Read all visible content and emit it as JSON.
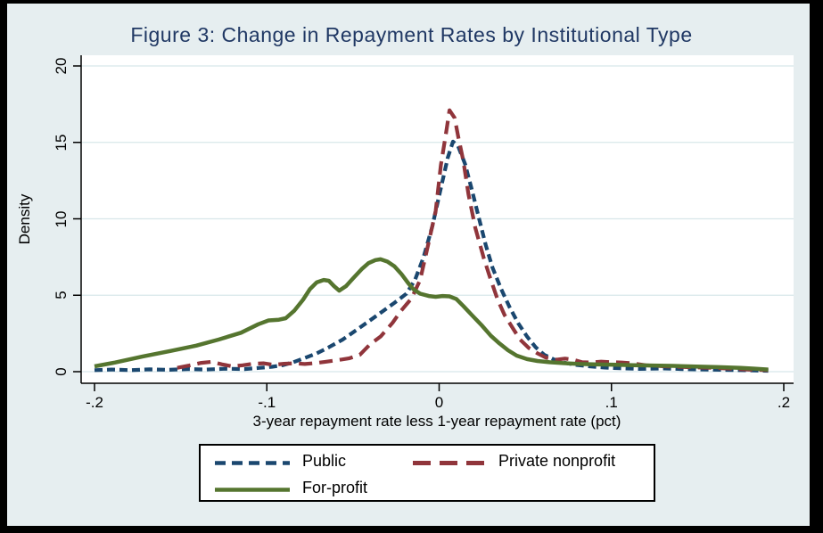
{
  "title": "Figure 3: Change in Repayment Rates by Institutional Type",
  "y_axis": {
    "label": "Density",
    "ticks": [
      0,
      5,
      10,
      15,
      20
    ]
  },
  "x_axis": {
    "label": "3-year repayment rate less 1-year repayment rate (pct)",
    "ticks": [
      "-.2",
      "-.1",
      "0",
      ".1",
      ".2"
    ],
    "tick_values": [
      -0.2,
      -0.1,
      0,
      0.1,
      0.2
    ]
  },
  "legend": {
    "items": [
      {
        "label": "Public",
        "color": "#1a476f",
        "style": "shortdash"
      },
      {
        "label": "Private nonprofit",
        "color": "#90353b",
        "style": "longdash"
      },
      {
        "label": "For-profit",
        "color": "#55752f",
        "style": "solid"
      }
    ]
  },
  "colors": {
    "canvas_bg": "#e6eef0",
    "plot_bg": "#ffffff",
    "frame": "#000000",
    "gridline": "#d8e7ea",
    "axis": "#000000",
    "title_text": "#203864",
    "public": "#1a476f",
    "private_nonprofit": "#90353b",
    "for_profit": "#55752f"
  },
  "chart_data": {
    "type": "line",
    "title": "Figure 3: Change in Repayment Rates by Institutional Type",
    "xlabel": "3-year repayment rate less 1-year repayment rate (pct)",
    "ylabel": "Density",
    "xlim": [
      -0.21,
      0.21
    ],
    "ylim": [
      0,
      20
    ],
    "grid": true,
    "legend_position": "bottom",
    "series": [
      {
        "name": "Public",
        "color": "#1a476f",
        "style": "shortdash",
        "points": [
          [
            -0.2,
            0.1
          ],
          [
            -0.19,
            0.14
          ],
          [
            -0.179,
            0.1
          ],
          [
            -0.168,
            0.15
          ],
          [
            -0.157,
            0.12
          ],
          [
            -0.146,
            0.17
          ],
          [
            -0.135,
            0.14
          ],
          [
            -0.124,
            0.19
          ],
          [
            -0.113,
            0.17
          ],
          [
            -0.104,
            0.25
          ],
          [
            -0.097,
            0.32
          ],
          [
            -0.091,
            0.42
          ],
          [
            -0.085,
            0.6
          ],
          [
            -0.078,
            0.9
          ],
          [
            -0.071,
            1.2
          ],
          [
            -0.064,
            1.6
          ],
          [
            -0.056,
            2.1
          ],
          [
            -0.049,
            2.65
          ],
          [
            -0.042,
            3.2
          ],
          [
            -0.034,
            3.85
          ],
          [
            -0.026,
            4.5
          ],
          [
            -0.019,
            5.1
          ],
          [
            -0.014,
            6.0
          ],
          [
            -0.009,
            7.5
          ],
          [
            -0.004,
            9.5
          ],
          [
            0.001,
            12.0
          ],
          [
            0.005,
            14.0
          ],
          [
            0.008,
            15.05
          ],
          [
            0.011,
            14.75
          ],
          [
            0.015,
            13.6
          ],
          [
            0.019,
            11.9
          ],
          [
            0.023,
            10.1
          ],
          [
            0.027,
            8.3
          ],
          [
            0.031,
            6.8
          ],
          [
            0.036,
            5.4
          ],
          [
            0.041,
            4.2
          ],
          [
            0.046,
            3.15
          ],
          [
            0.051,
            2.3
          ],
          [
            0.056,
            1.6
          ],
          [
            0.061,
            1.1
          ],
          [
            0.067,
            0.78
          ],
          [
            0.073,
            0.58
          ],
          [
            0.08,
            0.44
          ],
          [
            0.088,
            0.34
          ],
          [
            0.096,
            0.27
          ],
          [
            0.105,
            0.22
          ],
          [
            0.116,
            0.18
          ],
          [
            0.13,
            0.21
          ],
          [
            0.145,
            0.16
          ],
          [
            0.16,
            0.13
          ],
          [
            0.175,
            0.1
          ],
          [
            0.191,
            0.06
          ]
        ]
      },
      {
        "name": "Private nonprofit",
        "color": "#90353b",
        "style": "longdash",
        "points": [
          [
            -0.152,
            0.25
          ],
          [
            -0.145,
            0.4
          ],
          [
            -0.138,
            0.58
          ],
          [
            -0.132,
            0.65
          ],
          [
            -0.126,
            0.48
          ],
          [
            -0.12,
            0.35
          ],
          [
            -0.114,
            0.42
          ],
          [
            -0.108,
            0.52
          ],
          [
            -0.102,
            0.55
          ],
          [
            -0.096,
            0.45
          ],
          [
            -0.09,
            0.52
          ],
          [
            -0.084,
            0.55
          ],
          [
            -0.078,
            0.5
          ],
          [
            -0.072,
            0.56
          ],
          [
            -0.066,
            0.65
          ],
          [
            -0.059,
            0.75
          ],
          [
            -0.052,
            0.88
          ],
          [
            -0.046,
            1.1
          ],
          [
            -0.04,
            1.8
          ],
          [
            -0.034,
            2.3
          ],
          [
            -0.027,
            3.2
          ],
          [
            -0.022,
            4.0
          ],
          [
            -0.016,
            4.8
          ],
          [
            -0.011,
            6.0
          ],
          [
            -0.007,
            8.0
          ],
          [
            -0.002,
            10.5
          ],
          [
            0.001,
            13.5
          ],
          [
            0.004,
            15.6
          ],
          [
            0.006,
            17.1
          ],
          [
            0.009,
            16.6
          ],
          [
            0.011,
            15.4
          ],
          [
            0.014,
            13.8
          ],
          [
            0.017,
            11.6
          ],
          [
            0.021,
            9.4
          ],
          [
            0.026,
            7.4
          ],
          [
            0.03,
            6.0
          ],
          [
            0.034,
            4.7
          ],
          [
            0.038,
            3.7
          ],
          [
            0.043,
            2.8
          ],
          [
            0.047,
            2.1
          ],
          [
            0.052,
            1.55
          ],
          [
            0.057,
            1.2
          ],
          [
            0.062,
            0.92
          ],
          [
            0.068,
            0.78
          ],
          [
            0.073,
            0.86
          ],
          [
            0.078,
            0.78
          ],
          [
            0.083,
            0.62
          ],
          [
            0.088,
            0.6
          ],
          [
            0.094,
            0.66
          ],
          [
            0.1,
            0.62
          ],
          [
            0.106,
            0.6
          ],
          [
            0.112,
            0.55
          ],
          [
            0.12,
            0.42
          ],
          [
            0.131,
            0.35
          ],
          [
            0.144,
            0.3
          ],
          [
            0.158,
            0.25
          ],
          [
            0.172,
            0.18
          ],
          [
            0.182,
            0.12
          ],
          [
            0.191,
            0.1
          ]
        ]
      },
      {
        "name": "For-profit",
        "color": "#55752f",
        "style": "solid",
        "points": [
          [
            -0.2,
            0.35
          ],
          [
            -0.188,
            0.6
          ],
          [
            -0.172,
            1.0
          ],
          [
            -0.156,
            1.35
          ],
          [
            -0.141,
            1.7
          ],
          [
            -0.128,
            2.1
          ],
          [
            -0.115,
            2.55
          ],
          [
            -0.105,
            3.1
          ],
          [
            -0.099,
            3.35
          ],
          [
            -0.093,
            3.4
          ],
          [
            -0.089,
            3.5
          ],
          [
            -0.084,
            4.0
          ],
          [
            -0.079,
            4.7
          ],
          [
            -0.075,
            5.4
          ],
          [
            -0.071,
            5.85
          ],
          [
            -0.067,
            6.0
          ],
          [
            -0.064,
            5.95
          ],
          [
            -0.061,
            5.6
          ],
          [
            -0.058,
            5.3
          ],
          [
            -0.054,
            5.6
          ],
          [
            -0.05,
            6.1
          ],
          [
            -0.045,
            6.7
          ],
          [
            -0.041,
            7.1
          ],
          [
            -0.037,
            7.3
          ],
          [
            -0.034,
            7.35
          ],
          [
            -0.03,
            7.2
          ],
          [
            -0.026,
            6.9
          ],
          [
            -0.022,
            6.4
          ],
          [
            -0.018,
            5.8
          ],
          [
            -0.015,
            5.4
          ],
          [
            -0.011,
            5.1
          ],
          [
            -0.006,
            4.95
          ],
          [
            -0.002,
            4.9
          ],
          [
            0.002,
            4.95
          ],
          [
            0.006,
            4.93
          ],
          [
            0.01,
            4.75
          ],
          [
            0.014,
            4.3
          ],
          [
            0.019,
            3.7
          ],
          [
            0.025,
            3.0
          ],
          [
            0.03,
            2.35
          ],
          [
            0.035,
            1.85
          ],
          [
            0.04,
            1.4
          ],
          [
            0.045,
            1.05
          ],
          [
            0.051,
            0.82
          ],
          [
            0.057,
            0.7
          ],
          [
            0.064,
            0.62
          ],
          [
            0.072,
            0.56
          ],
          [
            0.082,
            0.5
          ],
          [
            0.092,
            0.47
          ],
          [
            0.103,
            0.45
          ],
          [
            0.113,
            0.42
          ],
          [
            0.124,
            0.4
          ],
          [
            0.136,
            0.38
          ],
          [
            0.149,
            0.33
          ],
          [
            0.162,
            0.3
          ],
          [
            0.175,
            0.25
          ],
          [
            0.183,
            0.2
          ],
          [
            0.191,
            0.14
          ]
        ]
      }
    ]
  }
}
